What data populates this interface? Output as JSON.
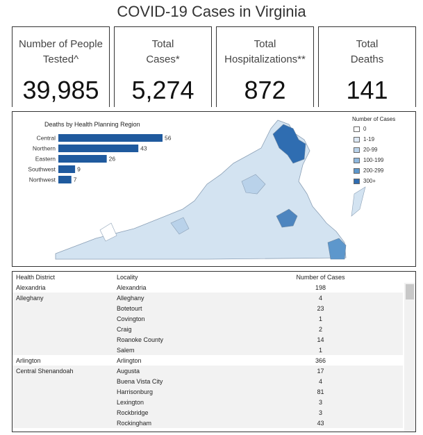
{
  "title": "COVID-19 Cases in Virginia",
  "kpis": [
    {
      "label": "Number of People Tested^",
      "value": "39,985"
    },
    {
      "label": "Total Cases*",
      "value": "5,274"
    },
    {
      "label": "Total Hospitalizations**",
      "value": "872"
    },
    {
      "label": "Total Deaths",
      "value": "141"
    }
  ],
  "chart_data": {
    "type": "bar",
    "orientation": "horizontal",
    "title": "Deaths by Health Planning Region",
    "categories": [
      "Central",
      "Northern",
      "Eastern",
      "Southwest",
      "Northwest"
    ],
    "values": [
      56,
      43,
      26,
      9,
      7
    ],
    "bar_color": "#1f5a9e"
  },
  "legend": {
    "title": "Number of Cases",
    "items": [
      {
        "label": "0",
        "color": "#ffffff"
      },
      {
        "label": "1-19",
        "color": "#dce8f4"
      },
      {
        "label": "20-99",
        "color": "#b9d2ea"
      },
      {
        "label": "100-199",
        "color": "#8fb8de"
      },
      {
        "label": "200-299",
        "color": "#5d97cc"
      },
      {
        "label": "300+",
        "color": "#2f6db1"
      }
    ]
  },
  "table": {
    "headers": [
      "Health District",
      "Locality",
      "Number of Cases"
    ],
    "rows": [
      {
        "district": "Alexandria",
        "locality": "Alexandria",
        "cases": "198"
      },
      {
        "district": "Alleghany",
        "locality": "Alleghany",
        "cases": "4"
      },
      {
        "district": "",
        "locality": "Botetourt",
        "cases": "23"
      },
      {
        "district": "",
        "locality": "Covington",
        "cases": "1"
      },
      {
        "district": "",
        "locality": "Craig",
        "cases": "2"
      },
      {
        "district": "",
        "locality": "Roanoke County",
        "cases": "14"
      },
      {
        "district": "",
        "locality": "Salem",
        "cases": "1"
      },
      {
        "district": "Arlington",
        "locality": "Arlington",
        "cases": "366"
      },
      {
        "district": "Central Shenandoah",
        "locality": "Augusta",
        "cases": "17"
      },
      {
        "district": "",
        "locality": "Buena Vista City",
        "cases": "4"
      },
      {
        "district": "",
        "locality": "Harrisonburg",
        "cases": "81"
      },
      {
        "district": "",
        "locality": "Lexington",
        "cases": "3"
      },
      {
        "district": "",
        "locality": "Rockbridge",
        "cases": "3"
      },
      {
        "district": "",
        "locality": "Rockingham",
        "cases": "43"
      }
    ]
  }
}
